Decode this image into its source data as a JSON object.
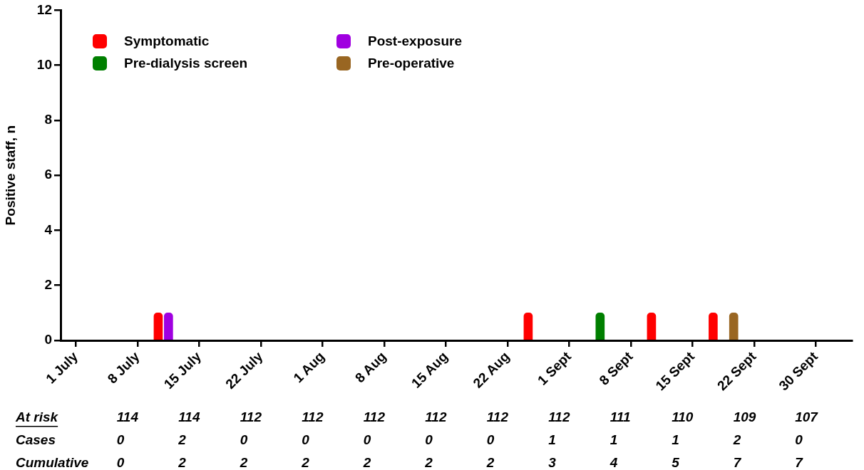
{
  "chart_data": {
    "type": "bar",
    "ylabel": "Positive staff, n",
    "categories": [
      null,
      "1 July",
      null,
      null,
      null,
      null,
      null,
      "8 July",
      null,
      null,
      null,
      null,
      null,
      "15 July",
      null,
      null,
      null,
      null,
      null,
      "22 July",
      null,
      null,
      null,
      null,
      null,
      "1 Aug",
      null,
      null,
      null,
      null,
      null,
      "8 Aug",
      null,
      null,
      null,
      null,
      null,
      "15 Aug",
      null,
      null,
      null,
      null,
      null,
      "22 Aug",
      null,
      null,
      null,
      null,
      null,
      "1 Sept",
      null,
      null,
      null,
      null,
      null,
      "8 Sept",
      null,
      null,
      null,
      null,
      null,
      "15 Sept",
      null,
      null,
      null,
      null,
      null,
      "22 Sept",
      null,
      null,
      null,
      null,
      null,
      "30 Sept",
      null,
      null,
      null
    ],
    "ylim": [
      0,
      12
    ],
    "yticks": [
      0,
      2,
      4,
      6,
      8,
      10,
      12
    ],
    "series": [
      {
        "name": "Symptomatic",
        "color": "#ff0000",
        "values": [
          null,
          null,
          null,
          null,
          null,
          null,
          null,
          null,
          null,
          1,
          null,
          null,
          null,
          null,
          null,
          null,
          null,
          null,
          null,
          null,
          null,
          null,
          null,
          null,
          null,
          null,
          null,
          null,
          null,
          null,
          null,
          null,
          null,
          null,
          null,
          null,
          null,
          null,
          null,
          null,
          null,
          null,
          null,
          null,
          null,
          1,
          null,
          null,
          null,
          null,
          null,
          null,
          null,
          null,
          null,
          null,
          null,
          1,
          null,
          null,
          null,
          null,
          null,
          1,
          null,
          null,
          null,
          null,
          null,
          null,
          null,
          null,
          null,
          null,
          null,
          null,
          null
        ]
      },
      {
        "name": "Pre-dialysis screen",
        "color": "#007f00",
        "values": [
          null,
          null,
          null,
          null,
          null,
          null,
          null,
          null,
          null,
          null,
          null,
          null,
          null,
          null,
          null,
          null,
          null,
          null,
          null,
          null,
          null,
          null,
          null,
          null,
          null,
          null,
          null,
          null,
          null,
          null,
          null,
          null,
          null,
          null,
          null,
          null,
          null,
          null,
          null,
          null,
          null,
          null,
          null,
          null,
          null,
          null,
          null,
          null,
          null,
          null,
          null,
          null,
          1,
          null,
          null,
          null,
          null,
          null,
          null,
          null,
          null,
          null,
          null,
          null,
          null,
          null,
          null,
          null,
          null,
          null,
          null,
          null,
          null,
          null,
          null,
          null,
          null
        ]
      },
      {
        "name": "Post-exposure",
        "color": "#a000e0",
        "values": [
          null,
          null,
          null,
          null,
          null,
          null,
          null,
          null,
          null,
          null,
          1,
          null,
          null,
          null,
          null,
          null,
          null,
          null,
          null,
          null,
          null,
          null,
          null,
          null,
          null,
          null,
          null,
          null,
          null,
          null,
          null,
          null,
          null,
          null,
          null,
          null,
          null,
          null,
          null,
          null,
          null,
          null,
          null,
          null,
          null,
          null,
          null,
          null,
          null,
          null,
          null,
          null,
          null,
          null,
          null,
          null,
          null,
          null,
          null,
          null,
          null,
          null,
          null,
          null,
          null,
          null,
          null,
          null,
          null,
          null,
          null,
          null,
          null,
          null,
          null,
          null,
          null
        ]
      },
      {
        "name": "Pre-operative",
        "color": "#996622",
        "values": [
          null,
          null,
          null,
          null,
          null,
          null,
          null,
          null,
          null,
          null,
          null,
          null,
          null,
          null,
          null,
          null,
          null,
          null,
          null,
          null,
          null,
          null,
          null,
          null,
          null,
          null,
          null,
          null,
          null,
          null,
          null,
          null,
          null,
          null,
          null,
          null,
          null,
          null,
          null,
          null,
          null,
          null,
          null,
          null,
          null,
          null,
          null,
          null,
          null,
          null,
          null,
          null,
          null,
          null,
          null,
          null,
          null,
          null,
          null,
          null,
          null,
          null,
          null,
          null,
          null,
          1,
          null,
          null,
          null,
          null,
          null,
          null,
          null,
          null,
          null,
          null,
          null
        ]
      }
    ],
    "legend": "top left",
    "annotations": [
      "At risk",
      "114",
      "114",
      "112",
      "112",
      "112",
      "112",
      "112",
      "112",
      "111",
      "110",
      "109",
      "107",
      "Cases",
      "0",
      "2",
      "0",
      "0",
      "0",
      "0",
      "0",
      "1",
      "1",
      "1",
      "2",
      "0",
      "Cumulative",
      "0",
      "2",
      "2",
      "2",
      "2",
      "2",
      "2",
      "3",
      "4",
      "5",
      "7",
      "7"
    ]
  }
}
